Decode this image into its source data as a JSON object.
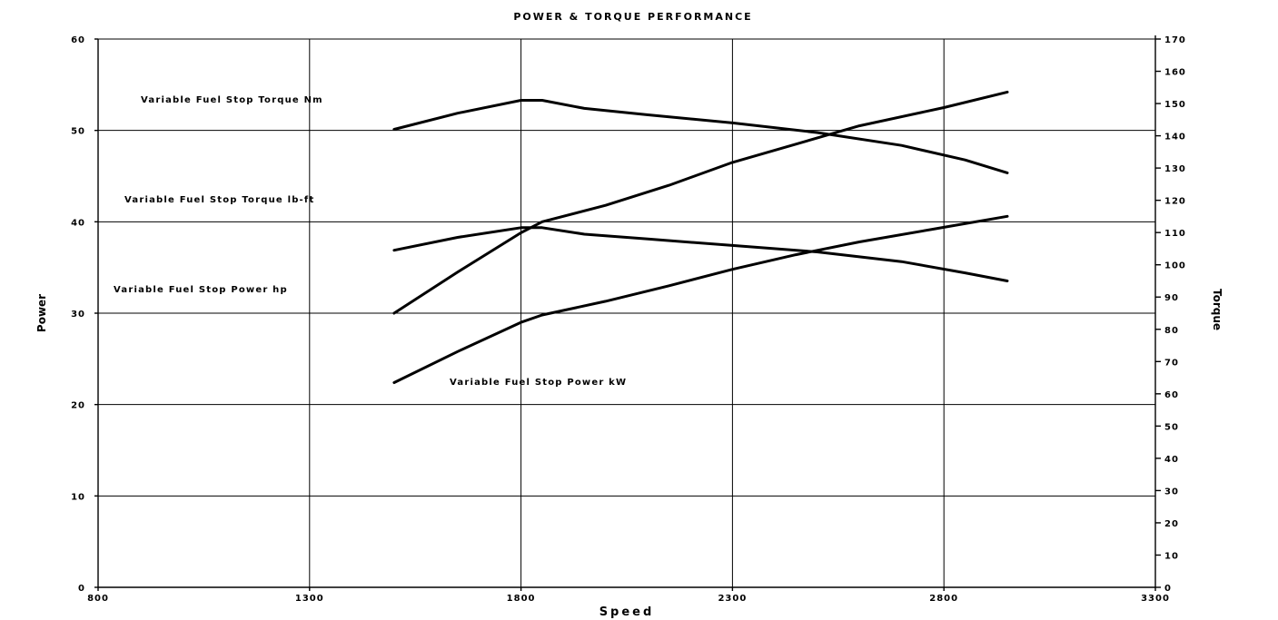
{
  "chart_data": {
    "type": "line",
    "title": "POWER & TORQUE PERFORMANCE",
    "xlabel": "Speed",
    "ylabel": "Power",
    "y2label": "Torque",
    "xlim": [
      800,
      3300
    ],
    "ylim": [
      0,
      60
    ],
    "y2lim": [
      0,
      170
    ],
    "xticks": [
      800,
      1300,
      1800,
      2300,
      2800,
      3300
    ],
    "yticks": [
      0,
      10,
      20,
      30,
      40,
      50,
      60
    ],
    "y2ticks": [
      0,
      10,
      20,
      30,
      40,
      50,
      60,
      70,
      80,
      90,
      100,
      110,
      120,
      130,
      140,
      150,
      160,
      170
    ],
    "grid": true,
    "series": [
      {
        "name": "Variable Fuel Stop Torque Nm",
        "axis": "right",
        "x": [
          1500,
          1650,
          1800,
          1850,
          1950,
          2100,
          2300,
          2500,
          2700,
          2850,
          2950
        ],
        "y": [
          142,
          147,
          151,
          151,
          148.5,
          146.5,
          144,
          141,
          137,
          132.5,
          128.5
        ]
      },
      {
        "name": "Variable Fuel Stop Torque lb-ft",
        "axis": "right",
        "x": [
          1500,
          1650,
          1800,
          1850,
          1950,
          2100,
          2300,
          2500,
          2700,
          2850,
          2950
        ],
        "y": [
          104.5,
          108.5,
          111.5,
          111.5,
          109.5,
          108,
          106,
          104,
          101,
          97.5,
          95
        ]
      },
      {
        "name": "Variable Fuel Stop Power hp",
        "axis": "left",
        "x": [
          1500,
          1650,
          1800,
          1850,
          2000,
          2150,
          2300,
          2450,
          2600,
          2800,
          2950
        ],
        "y": [
          30,
          34.5,
          38.8,
          40,
          41.8,
          44,
          46.5,
          48.5,
          50.5,
          52.5,
          54.2
        ]
      },
      {
        "name": "Variable Fuel Stop Power kW",
        "axis": "left",
        "x": [
          1500,
          1650,
          1800,
          1850,
          2000,
          2150,
          2300,
          2450,
          2600,
          2800,
          2950
        ],
        "y": [
          22.4,
          25.8,
          29,
          29.8,
          31.3,
          33,
          34.8,
          36.4,
          37.8,
          39.4,
          40.6
        ]
      }
    ]
  }
}
